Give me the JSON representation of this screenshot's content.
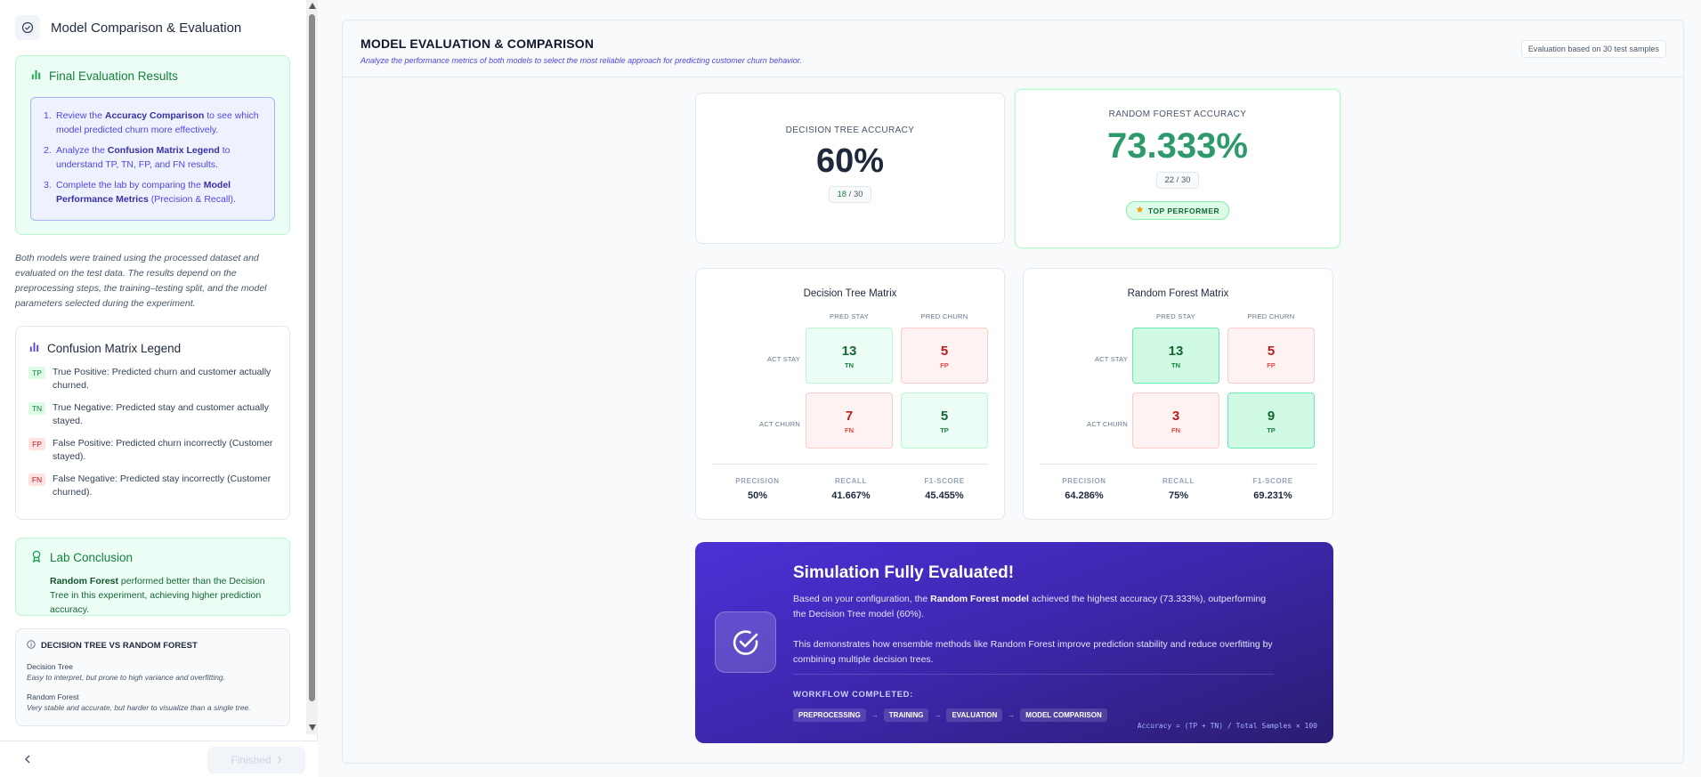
{
  "sidebar": {
    "title": "Model Comparison & Evaluation",
    "final": {
      "heading": "Final Evaluation Results",
      "steps": [
        {
          "num": "1.",
          "a": "Review the ",
          "b": "Accuracy Comparison",
          "c": " to see which model predicted churn more effectively."
        },
        {
          "num": "2.",
          "a": "Analyze the ",
          "b": "Confusion Matrix Legend",
          "c": " to understand TP, TN, FP, and FN results."
        },
        {
          "num": "3.",
          "a": "Complete the lab by comparing the ",
          "b": "Model Performance Metrics",
          "c": " (Precision & Recall)."
        }
      ]
    },
    "description": "Both models were trained using the processed dataset and evaluated on the test data. The results depend on the preprocessing steps, the training–testing split, and the model parameters selected during the experiment.",
    "legend": {
      "heading": "Confusion Matrix Legend",
      "items": [
        {
          "badge": "TP",
          "text": "True Positive: Predicted churn and customer actually churned."
        },
        {
          "badge": "TN",
          "text": "True Negative: Predicted stay and customer actually stayed."
        },
        {
          "badge": "FP",
          "text": "False Positive: Predicted churn incorrectly (Customer stayed)."
        },
        {
          "badge": "FN",
          "text": "False Negative: Predicted stay incorrectly (Customer churned)."
        }
      ]
    },
    "conclusion": {
      "heading": "Lab Conclusion",
      "bold": "Random Forest",
      "text": " performed better than the Decision Tree in this experiment, achieving higher prediction accuracy."
    },
    "versus": {
      "heading": "DECISION TREE VS RANDOM FOREST",
      "dt_name": "Decision Tree",
      "dt_desc": "Easy to interpret, but prone to high variance and overfitting.",
      "rf_name": "Random Forest",
      "rf_desc": "Very stable and accurate, but harder to visualize than a single tree."
    },
    "footer": {
      "back_icon": "chevron-left-icon",
      "finished_label": "Finished",
      "finished_icon": "chevron-right-icon"
    }
  },
  "main": {
    "title": "MODEL EVALUATION & COMPARISON",
    "subtitle": "Analyze the performance metrics of both models to select the most reliable approach for predicting customer churn behavior.",
    "eval_badge": "Evaluation based on 30 test samples",
    "dt_accuracy": {
      "label": "DECISION TREE ACCURACY",
      "value": "60%",
      "correct": "18",
      "sep": "/",
      "total": "30"
    },
    "rf_accuracy": {
      "label": "RANDOM FOREST ACCURACY",
      "value": "73.333%",
      "correct": "22",
      "sep": "/",
      "total": "30",
      "badge": "TOP PERFORMER"
    },
    "matrix_labels": {
      "pred_stay": "PRED STAY",
      "pred_churn": "PRED CHURN",
      "act_stay": "ACT STAY",
      "act_churn": "ACT CHURN"
    },
    "dt_matrix": {
      "title": "Decision Tree Matrix",
      "tn": "13",
      "fp": "5",
      "fn": "7",
      "tp": "5",
      "precision": "50%",
      "recall": "41.667%",
      "f1": "45.455%"
    },
    "rf_matrix": {
      "title": "Random Forest Matrix",
      "tn": "13",
      "fp": "5",
      "fn": "3",
      "tp": "9",
      "precision": "64.286%",
      "recall": "75%",
      "f1": "69.231%"
    },
    "metric_labels": {
      "precision": "PRECISION",
      "recall": "RECALL",
      "f1": "F1-SCORE"
    },
    "cell_tags": {
      "tn": "TN",
      "fp": "FP",
      "fn": "FN",
      "tp": "TP"
    },
    "simulation": {
      "title": "Simulation Fully Evaluated!",
      "p1_a": "Based on your configuration, the ",
      "p1_b": "Random Forest model",
      "p1_c": " achieved the highest accuracy (73.333%), outperforming the Decision Tree model (60%).",
      "p2": "This demonstrates how ensemble methods like Random Forest improve prediction stability and reduce overfitting by combining multiple decision trees.",
      "workflow_label": "WORKFLOW COMPLETED:",
      "workflow": [
        "PREPROCESSING",
        "TRAINING",
        "EVALUATION",
        "MODEL COMPARISON"
      ],
      "arrow": "→",
      "formula": "Accuracy = (TP + TN) / Total Samples × 100"
    }
  },
  "colors": {
    "accent": "#4f46e5",
    "success": "#2e9a6c",
    "danger": "#b91c1c"
  }
}
